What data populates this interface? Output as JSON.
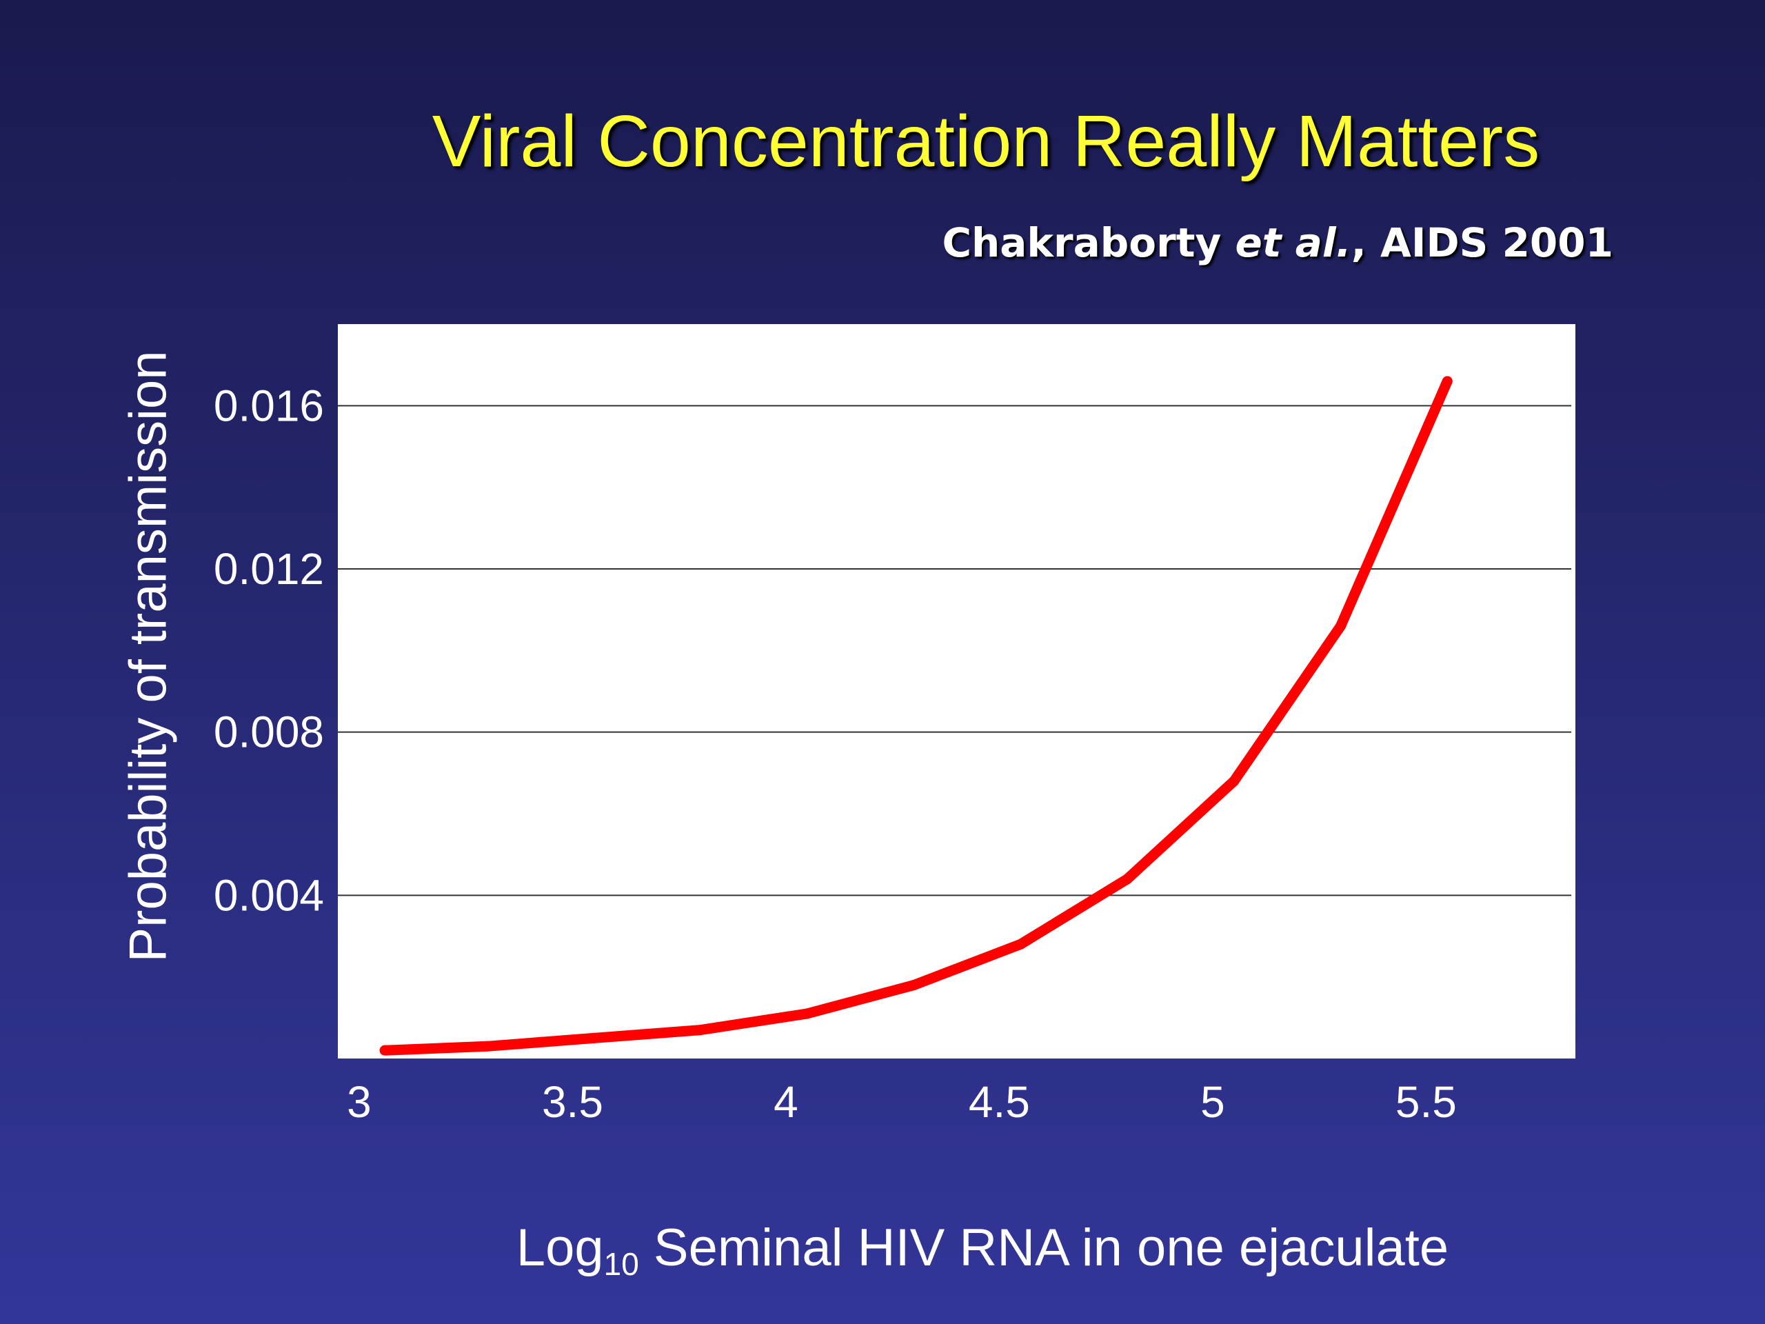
{
  "slide": {
    "title": "Viral Concentration Really Matters",
    "citation": {
      "author": "Chakraborty ",
      "etal": "et al.",
      "rest": ", AIDS 2001"
    }
  },
  "chart_data": {
    "type": "line",
    "title": "Viral Concentration Really Matters",
    "xlabel_main": "Log",
    "xlabel_sub": "10",
    "xlabel_rest": " Seminal HIV RNA in one ejaculate",
    "ylabel": "Probability of transmission",
    "xlim": [
      2.95,
      5.85
    ],
    "ylim": [
      0,
      0.018
    ],
    "x_ticks": [
      3,
      3.5,
      4,
      4.5,
      5,
      5.5
    ],
    "x_tick_labels": [
      "3",
      "3.5",
      "4",
      "4.5",
      "5",
      "5.5"
    ],
    "y_ticks": [
      0.004,
      0.008,
      0.012,
      0.016
    ],
    "y_tick_labels": [
      "0.004",
      "0.008",
      "0.012",
      "0.016"
    ],
    "grid": true,
    "legend": "none",
    "series": [
      {
        "color": "#ff0000",
        "x": [
          3.06,
          3.3,
          3.55,
          3.8,
          4.05,
          4.3,
          4.55,
          4.8,
          5.05,
          5.3,
          5.55
        ],
        "y": [
          0.0002,
          0.0003,
          0.0005,
          0.0007,
          0.0011,
          0.0018,
          0.0028,
          0.0044,
          0.0068,
          0.0106,
          0.0166
        ]
      }
    ]
  }
}
